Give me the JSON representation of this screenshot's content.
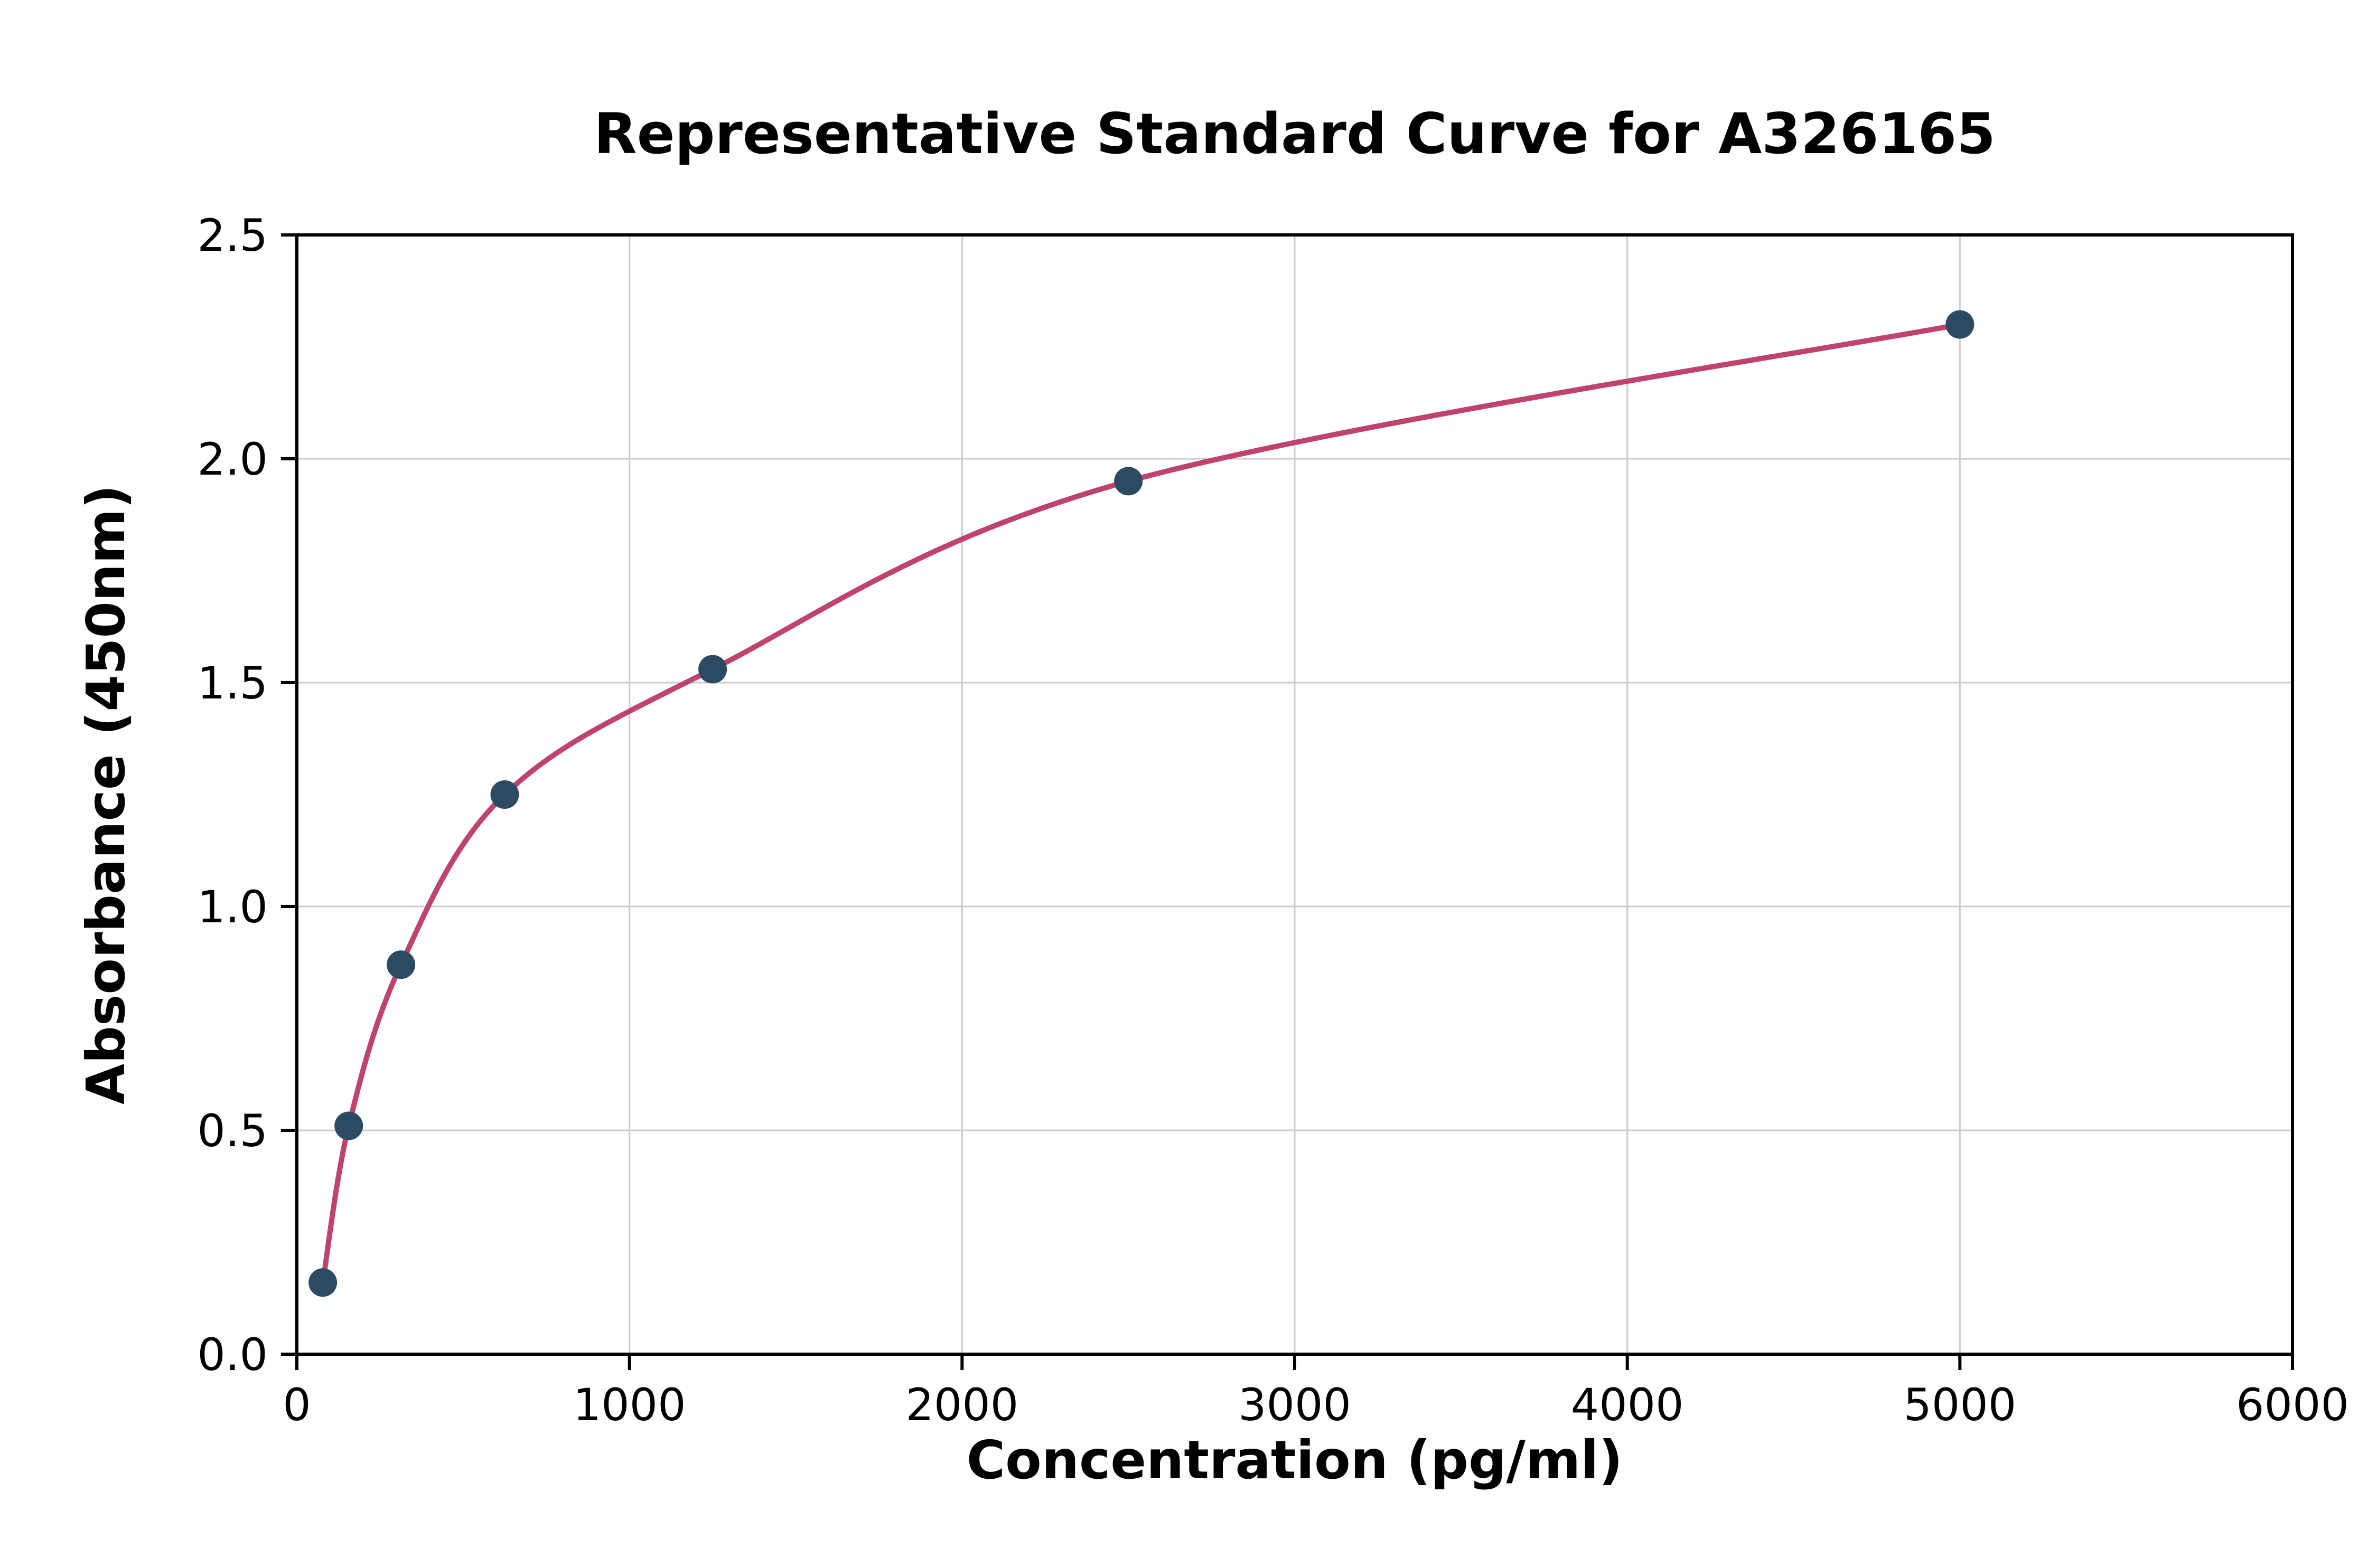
{
  "chart_data": {
    "type": "scatter",
    "title": "Representative Standard Curve for A326165",
    "xlabel": "Concentration (pg/ml)",
    "ylabel": "Absorbance (450nm)",
    "xlim": [
      0,
      6000
    ],
    "ylim": [
      0,
      2.5
    ],
    "grid": true,
    "legend_position": "none",
    "x_ticks": [
      0,
      1000,
      2000,
      3000,
      4000,
      5000,
      6000
    ],
    "x_tick_labels": [
      "0",
      "1000",
      "2000",
      "3000",
      "4000",
      "5000",
      "6000"
    ],
    "y_ticks": [
      0.0,
      0.5,
      1.0,
      1.5,
      2.0,
      2.5
    ],
    "y_tick_labels": [
      "0.0",
      "0.5",
      "1.0",
      "1.5",
      "2.0",
      "2.5"
    ],
    "points": [
      {
        "x": 78,
        "y": 0.16
      },
      {
        "x": 156,
        "y": 0.51
      },
      {
        "x": 313,
        "y": 0.87
      },
      {
        "x": 625,
        "y": 1.25
      },
      {
        "x": 1250,
        "y": 1.53
      },
      {
        "x": 2500,
        "y": 1.95
      },
      {
        "x": 5000,
        "y": 2.3
      }
    ],
    "colors": {
      "curve": "#c0436f",
      "points": "#2d4a63",
      "grid": "#cccccc",
      "spine": "#000000"
    }
  }
}
